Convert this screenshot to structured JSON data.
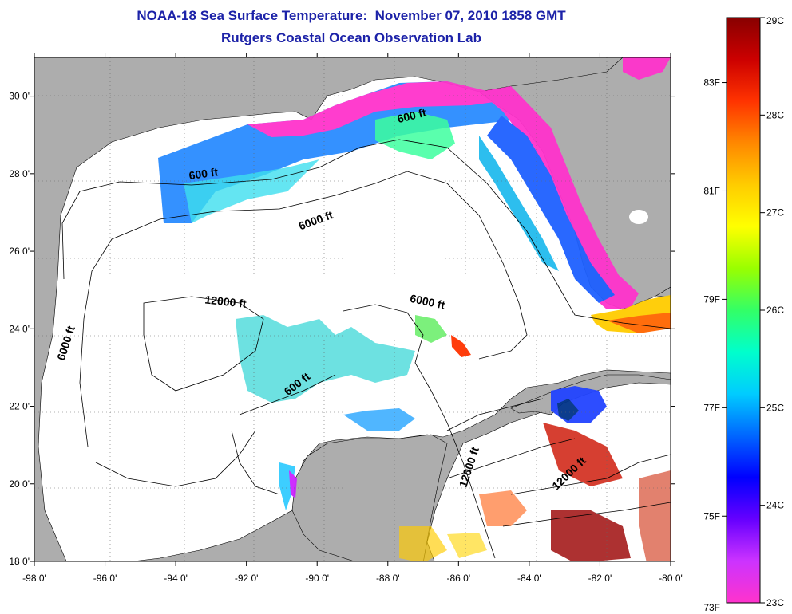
{
  "title": {
    "line1": "NOAA-18 Sea Surface Temperature:  November 07, 2010 1858 GMT",
    "line2": "Rutgers Coastal Ocean Observation Lab"
  },
  "axes": {
    "x_ticks": [
      "-98 0'",
      "-96 0'",
      "-94 0'",
      "-92 0'",
      "-90 0'",
      "-88 0'",
      "-86 0'",
      "-84 0'",
      "-82 0'",
      "-80 0'"
    ],
    "y_ticks": [
      "30 0'",
      "28 0'",
      "26 0'",
      "24 0'",
      "22 0'",
      "20 0'",
      "18 0'"
    ],
    "lon_range": [
      -98,
      -80
    ],
    "lat_range": [
      18,
      31
    ]
  },
  "contours": {
    "labels": [
      {
        "text": "600 ft",
        "lon": -93.2,
        "lat": 27.9,
        "rotate": -8
      },
      {
        "text": "6000 ft",
        "lon": -90.0,
        "lat": 26.7,
        "rotate": -20
      },
      {
        "text": "600 ft",
        "lon": -87.3,
        "lat": 29.4,
        "rotate": -14
      },
      {
        "text": "12000 ft",
        "lon": -92.6,
        "lat": 24.6,
        "rotate": 6
      },
      {
        "text": "6000 ft",
        "lon": -97.0,
        "lat": 23.6,
        "rotate": -72
      },
      {
        "text": "6000 ft",
        "lon": -86.9,
        "lat": 24.6,
        "rotate": 12
      },
      {
        "text": "600 ft",
        "lon": -90.5,
        "lat": 22.5,
        "rotate": -38
      },
      {
        "text": "12000 ft",
        "lon": -85.6,
        "lat": 20.4,
        "rotate": -72
      },
      {
        "text": "12000 ft",
        "lon": -82.8,
        "lat": 20.2,
        "rotate": -44
      }
    ]
  },
  "colorbar": {
    "celsius_labels": [
      "29C",
      "28C",
      "27C",
      "26C",
      "25C",
      "24C",
      "23C"
    ],
    "fahrenheit_labels": [
      "83F",
      "81F",
      "79F",
      "77F",
      "75F",
      "73F"
    ],
    "range_c": [
      23,
      29
    ],
    "colors": [
      "#ff33cc",
      "#cc33ff",
      "#6600ff",
      "#0000ff",
      "#0066ff",
      "#00ccff",
      "#00ffcc",
      "#33ff66",
      "#99ff00",
      "#ffff00",
      "#ffcc00",
      "#ff8800",
      "#ff3300",
      "#cc0000",
      "#880000"
    ]
  },
  "colors": {
    "land": "#adadad",
    "ocean": "#ffffff",
    "title": "#1c22a8"
  }
}
